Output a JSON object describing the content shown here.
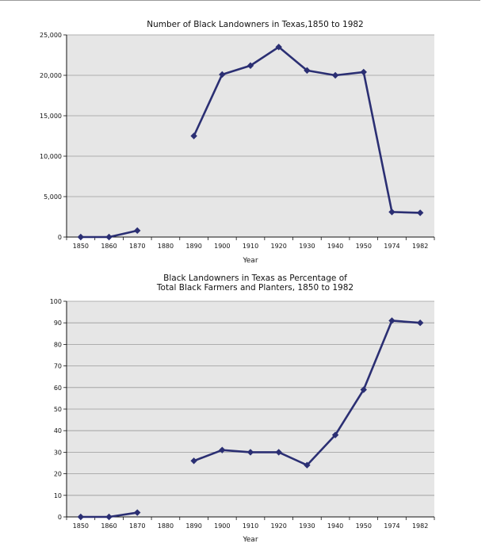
{
  "chart_data": [
    {
      "type": "line",
      "title": [
        "Number of Black Landowners in Texas,1850 to 1982"
      ],
      "xlabel": "Year",
      "ylabel": "",
      "categories": [
        "1850",
        "1860",
        "1870",
        "1880",
        "1890",
        "1900",
        "1910",
        "1920",
        "1930",
        "1940",
        "1950",
        "1974",
        "1982"
      ],
      "values": [
        0,
        0,
        800,
        null,
        12500,
        20100,
        21200,
        23500,
        20600,
        20000,
        20400,
        3100,
        3000
      ],
      "ylim": [
        0,
        25000
      ],
      "yticks": [
        0,
        5000,
        10000,
        15000,
        20000,
        25000
      ],
      "ytick_labels": [
        "0",
        "5,000",
        "10,000",
        "15,000",
        "20,000",
        "25,000"
      ],
      "grid": true,
      "colors": {
        "line": "#2b2f73",
        "plot_bg": "#e6e6e6",
        "grid": "#9a9a9a"
      }
    },
    {
      "type": "line",
      "title": [
        "Black Landowners in Texas as Percentage of",
        "Total Black Farmers and Planters, 1850 to 1982"
      ],
      "xlabel": "Year",
      "ylabel": "",
      "categories": [
        "1850",
        "1860",
        "1870",
        "1880",
        "1890",
        "1900",
        "1910",
        "1920",
        "1930",
        "1940",
        "1950",
        "1974",
        "1982"
      ],
      "values": [
        0,
        0,
        2,
        null,
        26,
        31,
        30,
        30,
        24,
        38,
        59,
        91,
        90
      ],
      "ylim": [
        0,
        100
      ],
      "yticks": [
        0,
        10,
        20,
        30,
        40,
        50,
        60,
        70,
        80,
        90,
        100
      ],
      "ytick_labels": [
        "0",
        "10",
        "20",
        "30",
        "40",
        "50",
        "60",
        "70",
        "80",
        "90",
        "100"
      ],
      "grid": true,
      "colors": {
        "line": "#2b2f73",
        "plot_bg": "#e6e6e6",
        "grid": "#9a9a9a"
      }
    }
  ]
}
